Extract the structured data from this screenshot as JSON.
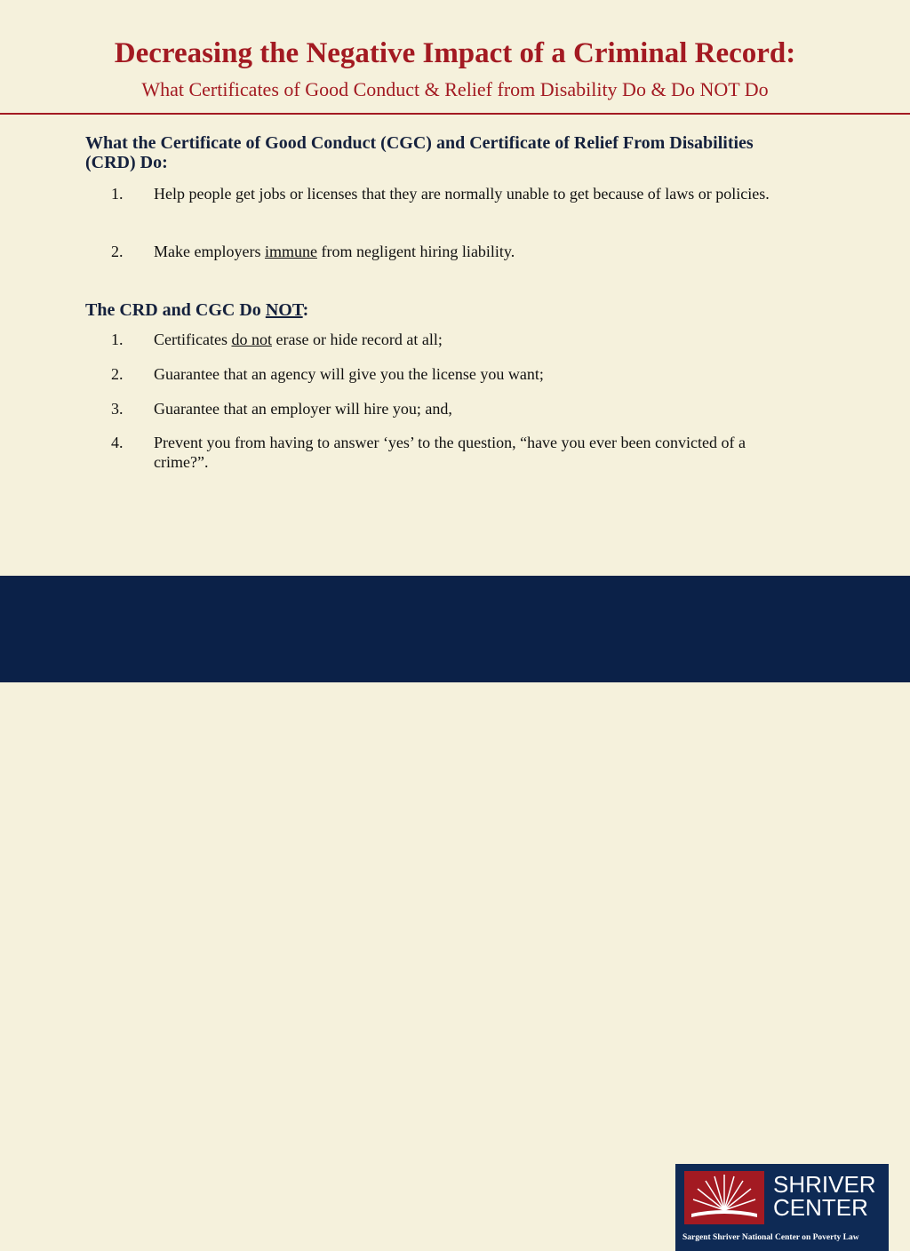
{
  "title": "Decreasing the Negative Impact of a Criminal Record:",
  "subtitle": "What Certificates of Good Conduct & Relief from Disability Do & Do NOT Do",
  "sections": [
    {
      "heading": [
        "What the Certificate of Good Conduct (CGC) and Certificate of Relief From Disabilities (CRD) Do:"
      ],
      "items": [
        {
          "number": "1.",
          "text": [
            "Help people get jobs or licenses that they are normally unable to get because of laws or policies."
          ]
        },
        {
          "number": "2.",
          "text": [
            "Make employers ",
            {
              "text": "immune",
              "underline": true
            },
            " from negligent hiring liability."
          ]
        }
      ]
    },
    {
      "heading": [
        "The CRD and CGC Do ",
        {
          "text": "NOT",
          "underline": true
        },
        ":"
      ],
      "items": [
        {
          "number": "1.",
          "text": [
            "Certificates ",
            {
              "text": "do not",
              "underline": true
            },
            " erase or hide record at all;"
          ]
        },
        {
          "number": "2.",
          "text": [
            "Guarantee that an agency will give you the license you want;"
          ]
        },
        {
          "number": "3.",
          "text": [
            "Guarantee that an employer will hire you; and,"
          ]
        },
        {
          "number": "4.",
          "text": [
            "Prevent you from having to answer ‘yes’ to the question, “have you ever been convicted of a crime?”."
          ]
        }
      ]
    }
  ],
  "logo": {
    "line1": "SHRIVER",
    "line2": "CENTER",
    "tagline": "Sargent Shriver National Center on Poverty Law"
  }
}
